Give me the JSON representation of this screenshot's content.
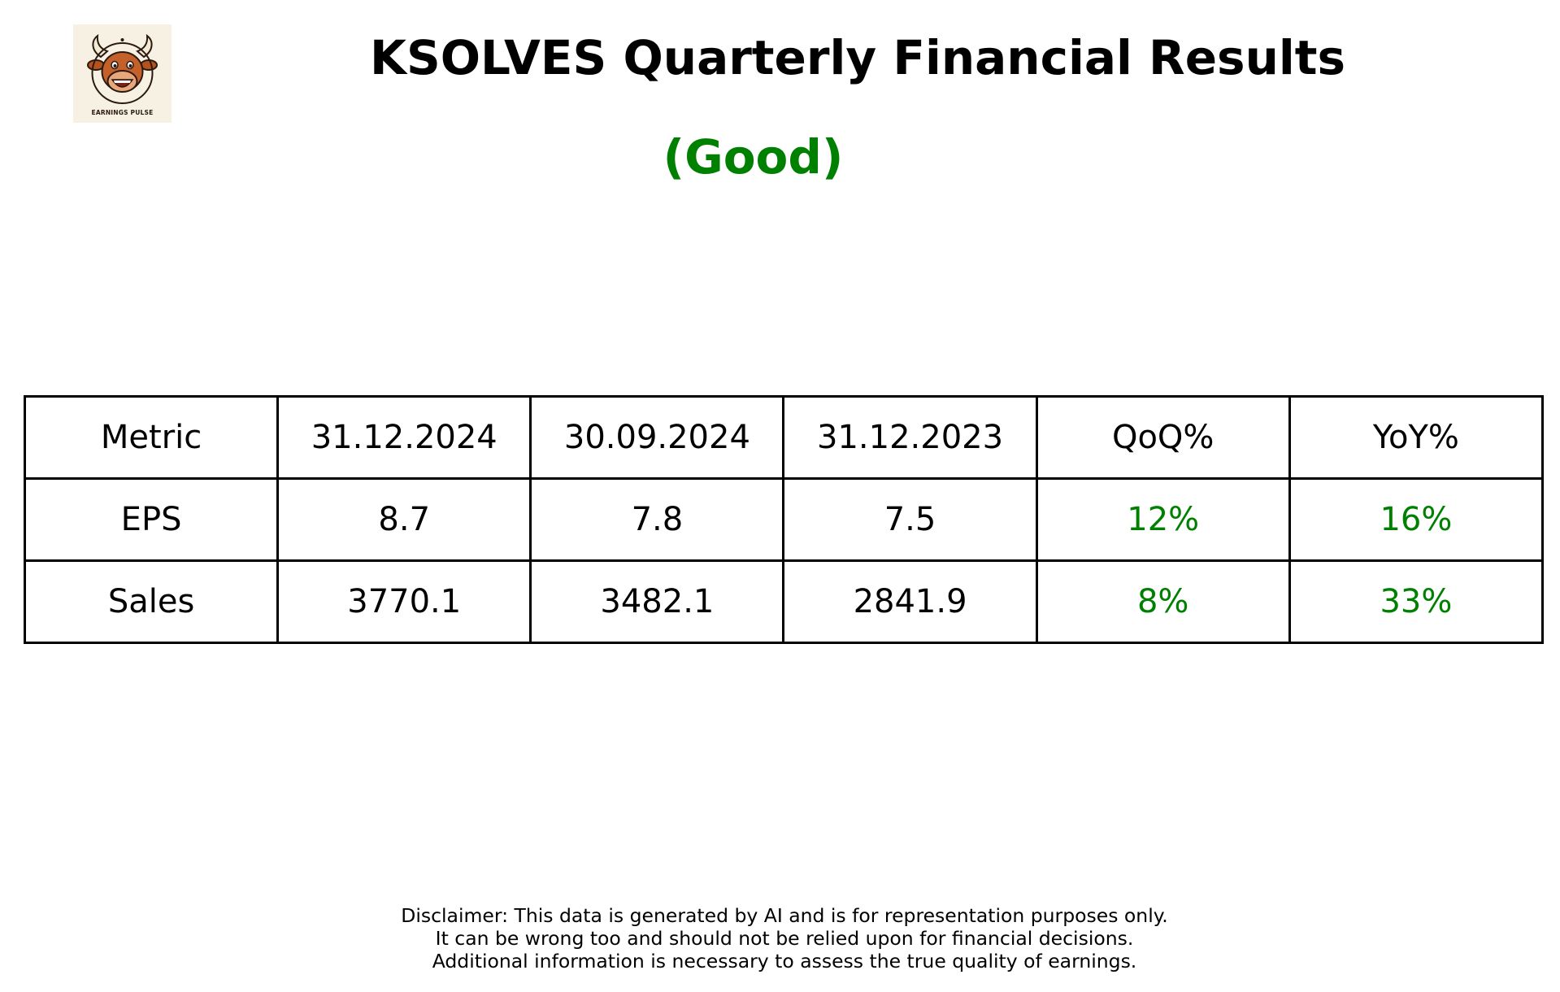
{
  "logo": {
    "text": "EARNINGS PULSE",
    "icon": "bull-mascot-icon"
  },
  "title": "KSOLVES Quarterly Financial Results",
  "rating": {
    "text": "(Good)",
    "color": "#008000"
  },
  "colors": {
    "positive": "#008000",
    "text": "#000000"
  },
  "table": {
    "headers": [
      "Metric",
      "31.12.2024",
      "30.09.2024",
      "31.12.2023",
      "QoQ%",
      "YoY%"
    ],
    "rows": [
      [
        "EPS",
        "8.7",
        "7.8",
        "7.5",
        "12%",
        "16%"
      ],
      [
        "Sales",
        "3770.1",
        "3482.1",
        "2841.9",
        "8%",
        "33%"
      ]
    ]
  },
  "disclaimer": [
    "Disclaimer: This data is generated by AI and is for representation purposes only.",
    "It can be wrong too and should not be relied upon for financial decisions.",
    "Additional information is necessary to assess the true quality of earnings."
  ]
}
